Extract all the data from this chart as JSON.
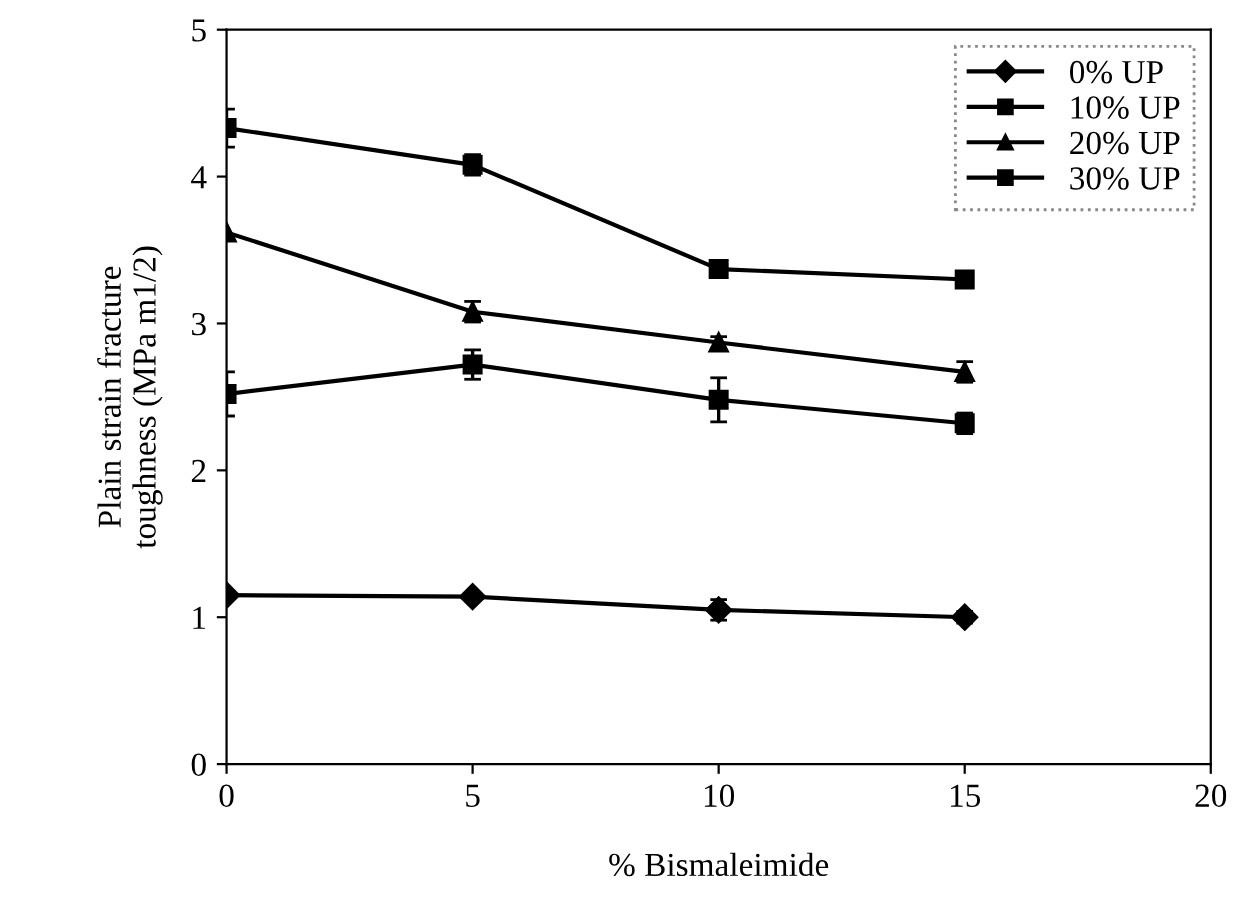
{
  "chart_data": {
    "type": "line",
    "xlabel": "% Bismaleimide",
    "ylabel": "Plain strain fracture\ntoughness (MPa m1/2)",
    "x": [
      0,
      5,
      10,
      15
    ],
    "xlim": [
      0,
      20
    ],
    "xticks": [
      0,
      5,
      10,
      15,
      20
    ],
    "ylim": [
      0,
      5
    ],
    "yticks": [
      0,
      1,
      2,
      3,
      4,
      5
    ],
    "grid": false,
    "legend": "top right",
    "line_style": "solid",
    "series": [
      {
        "name": "0% UP",
        "color": "#000000",
        "marker": "diamond",
        "values": [
          1.15,
          1.14,
          1.05,
          1.0
        ],
        "errors": [
          null,
          null,
          0.07,
          0.04
        ]
      },
      {
        "name": "10% UP",
        "color": "#000000",
        "marker": "square",
        "values": [
          2.52,
          2.72,
          2.48,
          2.32
        ],
        "errors": [
          0.15,
          0.1,
          0.15,
          0.07
        ]
      },
      {
        "name": "20% UP",
        "color": "#000000",
        "marker": "triangle",
        "values": [
          3.62,
          3.08,
          2.87,
          2.67
        ],
        "errors": [
          null,
          0.07,
          0.04,
          0.07
        ]
      },
      {
        "name": "30% UP",
        "color": "#000000",
        "marker": "square",
        "values": [
          4.33,
          4.08,
          3.37,
          3.3
        ],
        "errors": [
          0.13,
          0.07,
          0.04,
          null
        ]
      }
    ]
  }
}
